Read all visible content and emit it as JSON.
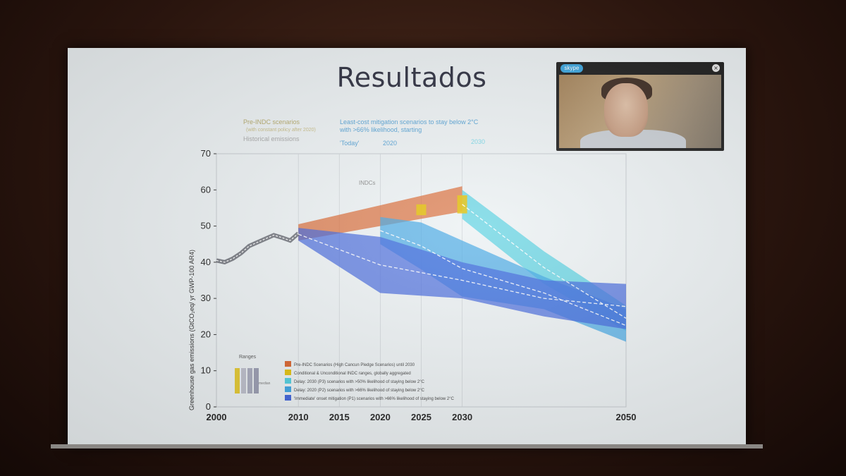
{
  "slide": {
    "title": "Resultados"
  },
  "chart_headers": {
    "pre_indc": "Pre-INDC scenarios",
    "pre_indc_sub": "(with constant policy after 2020)",
    "historical": "Historical emissions",
    "least_cost_line1": "Least-cost mitigation scenarios to stay below 2°C",
    "least_cost_line2": "with >66% likelihood, starting",
    "today": "'Today'",
    "start_2020": "2020",
    "start_2030": "2030"
  },
  "indcs_label": "INDCs",
  "legend": {
    "ranges": "Ranges",
    "median": "median",
    "entries": [
      {
        "text": "Pre-INDC Scenarios (High Cancun Pledge Scenarios) until 2030",
        "color": "#d9622b"
      },
      {
        "text": "Conditional & Unconditional INDC ranges, globally aggregated",
        "color": "#e3c20c"
      },
      {
        "text": "Delay: 2030 (P3) scenarios with >50% likelihood of staying below 2°C",
        "color": "#4ecfe0"
      },
      {
        "text": "Delay: 2020 (P2) scenarios with >66% likelihood of staying below 2°C",
        "color": "#3ba4e4"
      },
      {
        "text": "'Immediate' onset mitigation (P1) scenarios with >66% likelihood of staying below 2°C",
        "color": "#3f62dc"
      }
    ]
  },
  "skype": {
    "logo": "skype",
    "close_icon": "close-icon"
  },
  "chart_data": {
    "type": "area",
    "ylabel": "Greenhouse gas emissions (GtCO₂eq/ yr GWP-100 AR4)",
    "xlim": [
      2000,
      2050
    ],
    "ylim": [
      0,
      70
    ],
    "x_ticks": [
      2000,
      2010,
      2015,
      2020,
      2025,
      2030,
      2050
    ],
    "y_ticks": [
      0,
      10,
      20,
      30,
      40,
      50,
      60,
      70
    ],
    "series": [
      {
        "name": "Historical emissions",
        "color": "#50535e",
        "x": [
          2000,
          2001,
          2002,
          2003,
          2004,
          2005,
          2006,
          2007,
          2008,
          2009,
          2010
        ],
        "y": [
          40.5,
          40.0,
          41.0,
          42.5,
          44.5,
          45.5,
          46.5,
          47.5,
          46.8,
          46.0,
          48.0
        ]
      },
      {
        "name": "Pre-INDC Scenarios",
        "color": "#d9622b",
        "x": [
          2010,
          2030
        ],
        "lower": [
          46,
          54
        ],
        "upper": [
          50.5,
          61
        ]
      },
      {
        "name": "INDC ranges",
        "color": "#e3c20c",
        "x": [
          2010,
          2025,
          2030
        ],
        "lower": [
          46,
          53,
          53.5
        ],
        "upper": [
          49.5,
          56,
          58.5
        ]
      },
      {
        "name": "Delay: 2030 (P3)",
        "color": "#4ecfe0",
        "x": [
          2030,
          2040,
          2050
        ],
        "lower": [
          52,
          34,
          21
        ],
        "upper": [
          60,
          43,
          28
        ]
      },
      {
        "name": "Delay: 2020 (P2)",
        "color": "#3ba4e4",
        "x": [
          2020,
          2025,
          2030,
          2040,
          2050
        ],
        "lower": [
          45,
          38,
          30.5,
          27,
          18
        ],
        "upper": [
          52.5,
          51,
          46,
          36,
          27
        ]
      },
      {
        "name": "Immediate (P1)",
        "color": "#3f62dc",
        "x": [
          2010,
          2020,
          2030,
          2040,
          2050
        ],
        "lower": [
          46,
          31.5,
          30,
          25,
          21.5
        ],
        "upper": [
          49.5,
          47,
          40,
          35,
          34
        ]
      }
    ]
  }
}
